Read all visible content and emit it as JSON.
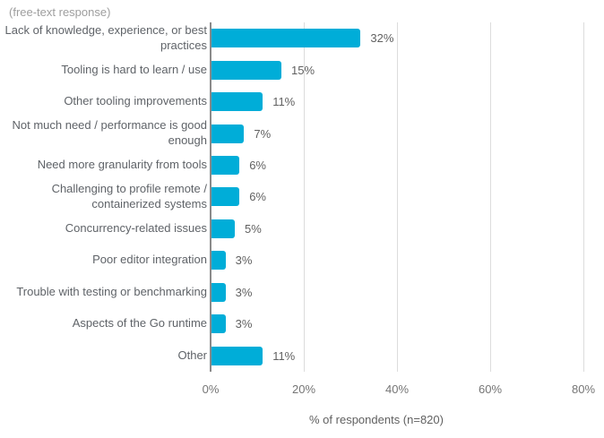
{
  "subtitle": "(free-text response)",
  "axis": {
    "x_label": "% of respondents (n=820)",
    "x_ticks": [
      "0%",
      "20%",
      "40%",
      "60%",
      "80%"
    ]
  },
  "colors": {
    "bar": "#00ADD8",
    "gridline": "#dcdcdc",
    "axis_line": "#8a8a8a",
    "category_label": "#5f6368",
    "value_label": "#616161",
    "tick_label": "#757575",
    "subtitle": "#9e9e9e",
    "background": "#ffffff"
  },
  "chart_data": {
    "type": "bar",
    "orientation": "horizontal",
    "subtitle": "(free-text response)",
    "xlabel": "% of respondents (n=820)",
    "xlim": [
      0,
      80
    ],
    "xtick_values": [
      0,
      20,
      40,
      60,
      80
    ],
    "xtick_labels": [
      "0%",
      "20%",
      "40%",
      "60%",
      "80%"
    ],
    "grid": "vertical gridlines every 20%",
    "legend": "none",
    "categories": [
      "Lack of knowledge, experience, or best practices",
      "Tooling is hard to learn / use",
      "Other tooling improvements",
      "Not much need / performance is good enough",
      "Need more granularity from tools",
      "Challenging to profile remote / containerized systems",
      "Concurrency-related issues",
      "Poor editor integration",
      "Trouble with testing or benchmarking",
      "Aspects of the Go runtime",
      "Other"
    ],
    "values": [
      32,
      15,
      11,
      7,
      6,
      6,
      5,
      3,
      3,
      3,
      11
    ],
    "value_labels": [
      "32%",
      "15%",
      "11%",
      "7%",
      "6%",
      "6%",
      "5%",
      "3%",
      "3%",
      "3%",
      "11%"
    ]
  }
}
